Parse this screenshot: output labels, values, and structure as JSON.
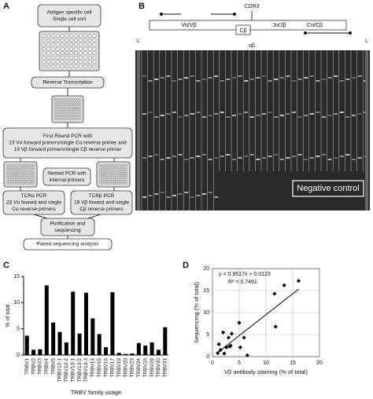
{
  "panel_labels": [
    "A",
    "B",
    "C",
    "D"
  ],
  "flowchart": {
    "nodes": [
      {
        "lines": [
          "Antigen specific cell",
          "Single cell sort"
        ]
      },
      {
        "lines": [
          "Reverse Transcription"
        ]
      },
      {
        "lines": [
          "First Round PCR with",
          "23 Vα forward primers/single Cα reverse primer and",
          "19 Vβ forward primers/single Cβ reverse primer"
        ]
      },
      {
        "lines": [
          "Nested PCR with",
          "internal primers"
        ]
      },
      {
        "lines": [
          "TCRα PCR",
          "23 Vα foward and single",
          "Cα reverse primers"
        ]
      },
      {
        "lines": [
          "TCRβ PCR",
          "19 Vβ foward and single",
          "Cβ reverse primers"
        ]
      },
      {
        "lines": [
          "Purification and",
          "sequencing"
        ]
      },
      {
        "lines": [
          "Paired sequencing analysis"
        ]
      }
    ]
  },
  "gel": {
    "construct_labels": [
      "CDR3",
      "Vα/Vβ",
      "Cβ",
      "Jα/Jβ",
      "Cα/Cβ"
    ],
    "lane_labels": [
      "L",
      "αβ",
      "L"
    ],
    "annotation": "Negative control"
  },
  "chart_data": [
    {
      "type": "bar",
      "y_label": "% of total",
      "x_label": "TRBV family usage",
      "categories": [
        "TRBV1",
        "TRBV2",
        "TRBV3",
        "TRBV4",
        "TRBV5",
        "TRBV12-1",
        "TRBV12-2",
        "TRBV13-1",
        "TRBV13-2",
        "TRBV13-3",
        "TRBV14",
        "TRBV15",
        "TRBV16",
        "TRBV17",
        "TRBV19",
        "TRBV20",
        "TRBV23",
        "TRBV24",
        "TRBV26",
        "TRBV29",
        "TRBV30",
        "TRBV31"
      ],
      "values": [
        3.7,
        1.0,
        1.1,
        13.3,
        6.2,
        4.4,
        2.4,
        12.1,
        4.1,
        11.9,
        7.0,
        4.0,
        1.5,
        12.0,
        0.4,
        0.2,
        0.3,
        2.3,
        1.8,
        2.4,
        1.0,
        5.3
      ],
      "color": "#000000",
      "ylim": [
        0,
        15
      ],
      "yticks": [
        0,
        5,
        10,
        15
      ]
    },
    {
      "type": "scatter",
      "y_label": "Sequencing (% of total)",
      "x_label": "Vβ antibody staining (% of total)",
      "x": [
        1.0,
        1.2,
        1.5,
        2.0,
        2.2,
        2.6,
        3.0,
        3.2,
        3.4,
        3.6,
        5.0,
        5.2,
        5.9,
        6.5,
        11.6,
        11.8,
        13.4,
        16.1
      ],
      "values": [
        0.8,
        2.8,
        1.5,
        5.5,
        0.7,
        2.1,
        4.3,
        2.3,
        2.5,
        5.2,
        7.7,
        2.1,
        4.3,
        0.3,
        14.3,
        6.8,
        16.2,
        17.2
      ],
      "color": "#000000",
      "xlim": [
        0,
        20
      ],
      "ylim": [
        0,
        20
      ],
      "xticks": [
        0,
        5,
        10,
        15,
        20
      ],
      "yticks": [
        0,
        5,
        10,
        15,
        20
      ],
      "grid": true,
      "fit": {
        "slope": 0.9517,
        "intercept": 0.0123,
        "label": "y = 0.9517x + 0.0123",
        "r2_label": "R² = 0.7491"
      }
    }
  ]
}
